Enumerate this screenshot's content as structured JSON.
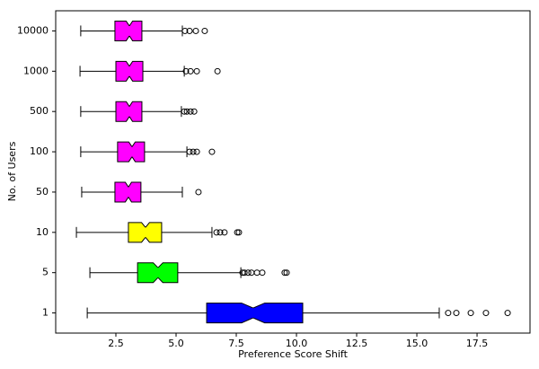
{
  "chart_data": {
    "type": "boxplot",
    "orientation": "horizontal",
    "notch": true,
    "xlabel": "Preference Score Shift",
    "ylabel": "No. of Users",
    "categories": [
      "1",
      "5",
      "10",
      "50",
      "100",
      "500",
      "1000",
      "10000"
    ],
    "colors": [
      "#0000ff",
      "#00ff00",
      "#ffff00",
      "#ff00ff",
      "#ff00ff",
      "#ff00ff",
      "#ff00ff",
      "#ff00ff"
    ],
    "boxes": [
      {
        "whislo": 1.31,
        "q1": 6.27,
        "med": 8.2,
        "q3": 10.26,
        "whishi": 15.93,
        "fliers": [
          16.3,
          16.64,
          17.24,
          17.87,
          18.77
        ]
      },
      {
        "whislo": 1.42,
        "q1": 3.4,
        "med": 4.25,
        "q3": 5.07,
        "whishi": 7.69,
        "fliers": [
          7.76,
          7.84,
          7.99,
          8.13,
          8.36,
          8.58,
          9.51,
          9.59
        ]
      },
      {
        "whislo": 0.86,
        "q1": 3.02,
        "med": 3.73,
        "q3": 4.4,
        "whishi": 6.49,
        "fliers": [
          6.68,
          6.83,
          7.01,
          7.54,
          7.61
        ]
      },
      {
        "whislo": 1.08,
        "q1": 2.46,
        "med": 3.02,
        "q3": 3.54,
        "whishi": 5.26,
        "fliers": [
          5.93
        ]
      },
      {
        "whislo": 1.04,
        "q1": 2.57,
        "med": 3.17,
        "q3": 3.69,
        "whishi": 5.45,
        "fliers": [
          5.56,
          5.71,
          5.86,
          6.49
        ]
      },
      {
        "whislo": 1.04,
        "q1": 2.5,
        "med": 3.06,
        "q3": 3.58,
        "whishi": 5.22,
        "fliers": [
          5.34,
          5.45,
          5.6,
          5.75
        ]
      },
      {
        "whislo": 1.01,
        "q1": 2.5,
        "med": 3.06,
        "q3": 3.62,
        "whishi": 5.34,
        "fliers": [
          5.41,
          5.6,
          5.86,
          6.72
        ]
      },
      {
        "whislo": 1.04,
        "q1": 2.46,
        "med": 3.06,
        "q3": 3.58,
        "whishi": 5.26,
        "fliers": [
          5.37,
          5.56,
          5.82,
          6.19
        ]
      }
    ],
    "xlim": [
      0,
      19.7
    ],
    "xticks": [
      2.5,
      {
        "value": 5,
        "label": "5.0"
      },
      7.5,
      {
        "value": 10,
        "label": "10.0"
      },
      12.5,
      {
        "value": 15,
        "label": "15.0"
      },
      17.5
    ]
  }
}
